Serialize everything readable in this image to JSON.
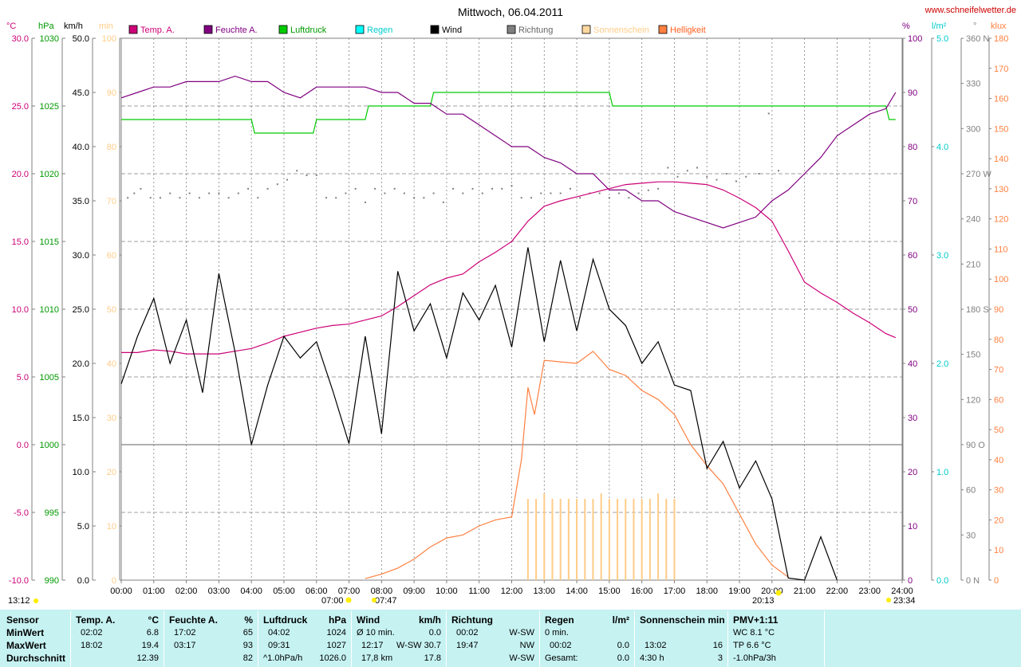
{
  "title": "Mittwoch, 06.04.2011",
  "watermark": "www.schneifelwetter.de",
  "colors": {
    "temp": "#cc0077",
    "humidity": "#800080",
    "pressure": "#00cc00",
    "rain": "#00cccc",
    "wind": "#000000",
    "direction": "#808080",
    "sunshine": "#ffcc88",
    "brightness": "#ff8040",
    "panel": "#c6f2f2",
    "axis_c": "#cc0077",
    "axis_hpa": "#009900",
    "axis_min": "#ffcc88",
    "axis_pct": "#800080",
    "axis_l": "#00cccc",
    "axis_deg": "#808080",
    "axis_klux": "#ff8040"
  },
  "legend": [
    {
      "label": "Temp. A.",
      "color": "#cc0077",
      "text_color": "#cc0077"
    },
    {
      "label": "Feuchte A.",
      "color": "#800080",
      "text_color": "#800080"
    },
    {
      "label": "Luftdruck",
      "color": "#00cc00",
      "text_color": "#009900"
    },
    {
      "label": "Regen",
      "color": "#00ffff",
      "text_color": "#00cccc"
    },
    {
      "label": "Wind",
      "color": "#000000",
      "text_color": "#000000"
    },
    {
      "label": "Richtung",
      "color": "#808080",
      "text_color": "#666666"
    },
    {
      "label": "Sonnenschein",
      "color": "#ffd8a0",
      "text_color": "#ffcc88"
    },
    {
      "label": "Helligkeit",
      "color": "#ff8040",
      "text_color": "#ff6020"
    }
  ],
  "axes": {
    "temp": {
      "unit": "°C",
      "ticks": [
        "30.0",
        "25.0",
        "20.0",
        "15.0",
        "10.0",
        "5.0",
        "0.0",
        "-5.0",
        "-10.0"
      ],
      "range": [
        -10,
        30
      ]
    },
    "pressure": {
      "unit": "hPa",
      "ticks": [
        "1030",
        "1025",
        "1020",
        "1015",
        "1010",
        "1005",
        "1000",
        "995",
        "990"
      ],
      "range": [
        990,
        1030
      ]
    },
    "wind": {
      "unit": "km/h",
      "ticks": [
        "50.0",
        "45.0",
        "40.0",
        "35.0",
        "30.0",
        "25.0",
        "20.0",
        "15.0",
        "10.0",
        "5.0",
        "0.0"
      ],
      "range": [
        0,
        50
      ]
    },
    "sunshine": {
      "unit": "min",
      "ticks": [
        "100",
        "90",
        "80",
        "70",
        "60",
        "50",
        "40",
        "30",
        "20",
        "10",
        "0"
      ],
      "range": [
        0,
        100
      ]
    },
    "humidity": {
      "unit": "%",
      "ticks": [
        "100",
        "90",
        "80",
        "70",
        "60",
        "50",
        "40",
        "30",
        "20",
        "10",
        "0"
      ],
      "range": [
        0,
        100
      ]
    },
    "rain": {
      "unit": "l/m²",
      "ticks": [
        "5.0",
        "4.0",
        "3.0",
        "2.0",
        "1.0",
        "0.0"
      ],
      "range": [
        0,
        5
      ]
    },
    "direction": {
      "unit": "°",
      "ticks": [
        "360 N",
        "330",
        "300",
        "270 W",
        "240",
        "210",
        "180 S",
        "150",
        "120",
        "90 O",
        "60",
        "30",
        "0 N"
      ],
      "range": [
        0,
        360
      ]
    },
    "brightness": {
      "unit": "klux",
      "ticks": [
        "180",
        "170",
        "160",
        "150",
        "140",
        "130",
        "120",
        "110",
        "100",
        "90",
        "80",
        "70",
        "60",
        "50",
        "40",
        "30",
        "20",
        "10",
        "0"
      ],
      "range": [
        0,
        180
      ]
    },
    "x_ticks": [
      "00:00",
      "01:00",
      "02:00",
      "03:00",
      "04:00",
      "05:00",
      "06:00",
      "07:00",
      "08:00",
      "09:00",
      "10:00",
      "11:00",
      "12:00",
      "13:00",
      "14:00",
      "15:00",
      "16:00",
      "17:00",
      "18:00",
      "19:00",
      "20:00",
      "21:00",
      "22:00",
      "23:00",
      "24:00"
    ]
  },
  "markers": {
    "moonset": "13:12",
    "sunrise": "07:00",
    "moonrise_label": "07:47",
    "sunset": "20:13",
    "moonset2": "23:34"
  },
  "chart_data": {
    "type": "line",
    "x_unit": "hours",
    "series": [
      {
        "name": "Temp. A.",
        "axis": "°C",
        "x": [
          0,
          0.5,
          1,
          1.5,
          2,
          2.5,
          3,
          3.5,
          4,
          4.5,
          5,
          5.5,
          6,
          6.5,
          7,
          7.5,
          8,
          8.5,
          9,
          9.5,
          10,
          10.5,
          11,
          11.5,
          12,
          12.5,
          13,
          13.5,
          14,
          14.5,
          15,
          15.5,
          16,
          16.5,
          17,
          17.5,
          18,
          18.5,
          19,
          19.5,
          20,
          20.5,
          21,
          21.5,
          22,
          22.5,
          23,
          23.5,
          23.8
        ],
        "y": [
          6.8,
          6.8,
          7.0,
          6.9,
          6.7,
          6.7,
          6.7,
          6.9,
          7.1,
          7.5,
          8.0,
          8.3,
          8.6,
          8.8,
          8.9,
          9.2,
          9.5,
          10.2,
          11.0,
          11.8,
          12.3,
          12.6,
          13.5,
          14.2,
          15.0,
          16.5,
          17.6,
          18.0,
          18.3,
          18.6,
          18.9,
          19.2,
          19.3,
          19.4,
          19.4,
          19.3,
          19.2,
          18.8,
          18.2,
          17.5,
          16.5,
          14.3,
          12.0,
          11.2,
          10.5,
          9.7,
          9.0,
          8.2,
          7.9
        ]
      },
      {
        "name": "Feuchte A.",
        "axis": "%",
        "x": [
          0,
          0.5,
          1,
          1.5,
          2,
          2.5,
          3,
          3.5,
          4,
          4.5,
          5,
          5.5,
          6,
          6.5,
          7,
          7.5,
          8,
          8.5,
          9,
          9.5,
          10,
          10.5,
          11,
          11.5,
          12,
          12.5,
          13,
          13.5,
          14,
          14.5,
          15,
          15.5,
          16,
          16.5,
          17,
          17.5,
          18,
          18.5,
          19,
          19.5,
          20,
          20.5,
          21,
          21.5,
          22,
          22.5,
          23,
          23.5,
          23.8
        ],
        "y": [
          89,
          90,
          91,
          91,
          92,
          92,
          92,
          93,
          92,
          92,
          90,
          89,
          91,
          91,
          91,
          91,
          90,
          90,
          88,
          88,
          86,
          86,
          84,
          82,
          80,
          80,
          78,
          77,
          75,
          75,
          72,
          72,
          70,
          70,
          68,
          67,
          66,
          65,
          66,
          67,
          70,
          72,
          75,
          78,
          82,
          84,
          86,
          87,
          90
        ]
      },
      {
        "name": "Luftdruck",
        "axis": "hPa",
        "x": [
          0,
          2,
          4,
          4.1,
          5.9,
          6,
          7.5,
          7.6,
          9.5,
          9.6,
          10,
          10.1,
          15,
          15.1,
          23.5,
          23.6,
          23.8
        ],
        "y": [
          1024,
          1024,
          1024,
          1023,
          1023,
          1024,
          1024,
          1025,
          1025,
          1026,
          1026,
          1026,
          1026,
          1025,
          1025,
          1024,
          1024
        ]
      },
      {
        "name": "Wind",
        "axis": "km/h",
        "x": [
          0,
          0.5,
          1,
          1.5,
          2,
          2.5,
          3,
          3.5,
          4,
          4.5,
          5,
          5.5,
          6,
          6.5,
          7,
          7.5,
          8,
          8.5,
          9,
          9.5,
          10,
          10.5,
          11,
          11.5,
          12,
          12.5,
          13,
          13.5,
          14,
          14.5,
          15,
          15.5,
          16,
          16.5,
          17,
          17.5,
          18,
          18.5,
          19,
          19.5,
          20,
          20.5,
          21,
          21.5,
          22
        ],
        "y": [
          18.1,
          22.5,
          26.0,
          20.0,
          24.0,
          17.3,
          28.3,
          21.0,
          12.5,
          18.0,
          22.5,
          20.5,
          22.0,
          17.5,
          12.6,
          22.5,
          13.5,
          28.5,
          23.0,
          25.5,
          20.5,
          26.5,
          24.0,
          27.2,
          21.5,
          30.7,
          22.0,
          29.5,
          23.0,
          29.6,
          25.0,
          23.5,
          20.0,
          22.0,
          18.0,
          17.5,
          10.3,
          12.8,
          8.5,
          11.0,
          7.5,
          0.2,
          0.0,
          4.0,
          0.0
        ]
      },
      {
        "name": "Helligkeit",
        "axis": "klux",
        "x": [
          7.5,
          8,
          8.5,
          9,
          9.5,
          10,
          10.5,
          11,
          11.5,
          12,
          12.3,
          12.5,
          12.7,
          13,
          13.5,
          14,
          14.5,
          15,
          15.5,
          16,
          16.5,
          17,
          17.5,
          18,
          18.5,
          19,
          19.5,
          20,
          20.5
        ],
        "y": [
          0.5,
          2.0,
          4.0,
          7.0,
          11.0,
          14.0,
          15.0,
          18.0,
          20.0,
          21.0,
          40.0,
          64.0,
          55.0,
          73.0,
          72.5,
          72.0,
          76.0,
          70.0,
          68.0,
          63.0,
          60.0,
          55.0,
          45.0,
          38.0,
          32.0,
          22.0,
          12.0,
          5.0,
          1.0
        ]
      },
      {
        "name": "Sonnenschein",
        "axis": "min",
        "type": "bar",
        "x": [
          12.5,
          12.75,
          13,
          13.25,
          13.5,
          13.75,
          14,
          14.25,
          14.5,
          14.75,
          15,
          15.25,
          15.5,
          15.75,
          16,
          16.25,
          16.5,
          16.75,
          17
        ],
        "y": [
          15,
          15,
          16,
          15,
          15,
          15,
          15,
          15,
          15,
          16,
          15,
          15,
          15,
          15,
          15,
          15,
          16,
          15,
          15
        ]
      },
      {
        "name": "Richtung",
        "axis": "°",
        "type": "scatter",
        "x": [
          0.2,
          0.4,
          0.6,
          0.9,
          1.2,
          1.5,
          1.8,
          2.1,
          2.4,
          2.7,
          3.0,
          3.3,
          3.6,
          3.9,
          4.2,
          4.5,
          4.8,
          5.1,
          5.4,
          5.7,
          6.0,
          6.3,
          6.6,
          6.9,
          7.2,
          7.5,
          7.8,
          8.1,
          8.4,
          8.7,
          9.0,
          9.3,
          9.6,
          9.9,
          10.2,
          10.5,
          10.8,
          11.1,
          11.4,
          11.7,
          12.0,
          12.3,
          12.6,
          12.9,
          13.2,
          13.5,
          13.8,
          14.1,
          14.4,
          14.7,
          15.0,
          15.3,
          15.6,
          15.9,
          16.2,
          16.5,
          16.8,
          17.1,
          17.4,
          17.7,
          18.0,
          18.3,
          18.6,
          18.9,
          19.2,
          19.6,
          19.9,
          20.2
        ],
        "y": [
          254,
          257,
          260,
          254,
          254,
          257,
          254,
          257,
          254,
          257,
          257,
          254,
          257,
          260,
          254,
          260,
          263,
          266,
          272,
          269,
          269,
          254,
          254,
          257,
          260,
          251,
          260,
          257,
          260,
          257,
          254,
          254,
          257,
          251,
          260,
          257,
          260,
          257,
          260,
          260,
          262,
          254,
          254,
          257,
          257,
          257,
          260,
          254,
          257,
          257,
          254,
          257,
          254,
          257,
          259,
          260,
          274,
          268,
          272,
          274,
          268,
          266,
          270,
          265,
          268,
          270,
          310,
          272
        ]
      }
    ]
  },
  "summary": {
    "sensor": {
      "header": "Sensor",
      "rows": [
        "MinWert",
        "MaxWert",
        "Durchschnitt"
      ]
    },
    "temp": {
      "header": "Temp. A.",
      "unit": "°C",
      "min_time": "02:02",
      "min": "6.8",
      "max_time": "18:02",
      "max": "19.4",
      "avg": "12.39"
    },
    "humidity": {
      "header": "Feuchte A.",
      "unit": "%",
      "min_time": "17:02",
      "min": "65",
      "max_time": "03:17",
      "max": "93",
      "avg": "82"
    },
    "pressure": {
      "header": "Luftdruck",
      "unit": "hPa",
      "min_time": "04:02",
      "min": "1024",
      "max_time": "09:31",
      "max": "1027",
      "trend": "^1.0hPa/h",
      "avg": "1026.0"
    },
    "wind": {
      "header": "Wind",
      "unit": "km/h",
      "min_label": "Ø 10 min.",
      "min": "0.0",
      "max_time": "12:17",
      "max": "W-SW 30.7",
      "distance": "17,8 km",
      "avg": "17.8"
    },
    "direction": {
      "header": "Richtung",
      "min_time": "00:02",
      "min": "W-SW",
      "max_time": "19:47",
      "max": "NW",
      "avg": "W-SW"
    },
    "rain": {
      "header": "Regen",
      "unit": "l/m²",
      "r1_label": "0 min.",
      "r1": "",
      "r2_time": "00:02",
      "r2": "0.0",
      "r3_label": "Gesamt:",
      "r3": "0.0"
    },
    "sunshine": {
      "header": "Sonnenschein min",
      "r1_time": "13:02",
      "r1": "16",
      "r2_time": "4:30 h",
      "r2": "3"
    },
    "pmv": {
      "header": "PMV+1:11",
      "r1": "WC 8.1 °C",
      "r2": "TP 6.6 °C",
      "r3": "-1.0hPa/3h"
    }
  }
}
